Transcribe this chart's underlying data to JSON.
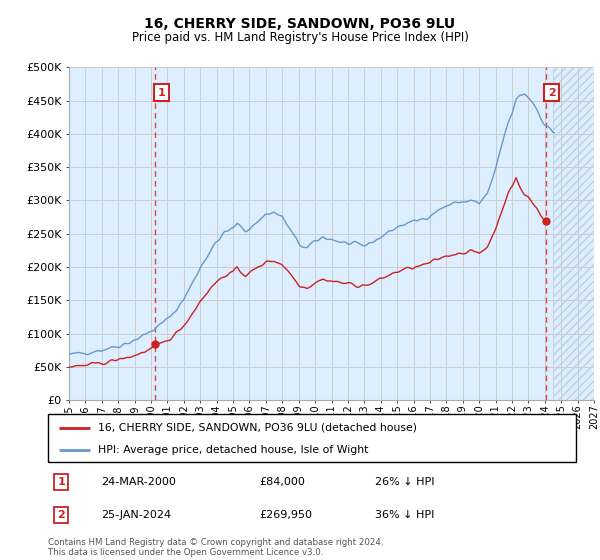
{
  "title": "16, CHERRY SIDE, SANDOWN, PO36 9LU",
  "subtitle": "Price paid vs. HM Land Registry's House Price Index (HPI)",
  "hpi_label": "HPI: Average price, detached house, Isle of Wight",
  "property_label": "16, CHERRY SIDE, SANDOWN, PO36 9LU (detached house)",
  "annotation1": {
    "num": "1",
    "date": "24-MAR-2000",
    "price": "£84,000",
    "hpi": "26% ↓ HPI",
    "year": 2000.23,
    "value": 84000
  },
  "annotation2": {
    "num": "2",
    "date": "25-JAN-2024",
    "price": "£269,950",
    "hpi": "36% ↓ HPI",
    "year": 2024.07,
    "value": 269950
  },
  "ylim": [
    0,
    500000
  ],
  "xlim_start": 1995,
  "xlim_end": 2027,
  "yticks": [
    0,
    50000,
    100000,
    150000,
    200000,
    250000,
    300000,
    350000,
    400000,
    450000,
    500000
  ],
  "ytick_labels": [
    "£0",
    "£50K",
    "£100K",
    "£150K",
    "£200K",
    "£250K",
    "£300K",
    "£350K",
    "£400K",
    "£450K",
    "£500K"
  ],
  "xticks": [
    1995,
    1996,
    1997,
    1998,
    1999,
    2000,
    2001,
    2002,
    2003,
    2004,
    2005,
    2006,
    2007,
    2008,
    2009,
    2010,
    2011,
    2012,
    2013,
    2014,
    2015,
    2016,
    2017,
    2018,
    2019,
    2020,
    2021,
    2022,
    2023,
    2024,
    2025,
    2026,
    2027
  ],
  "xtick_labels": [
    "1995",
    "1996",
    "1997",
    "1998",
    "1999",
    "2000",
    "2001",
    "2002",
    "2003",
    "2004",
    "2005",
    "2006",
    "2007",
    "2008",
    "2009",
    "2010",
    "2011",
    "2012",
    "2013",
    "2014",
    "2015",
    "2016",
    "2017",
    "2018",
    "2019",
    "2020",
    "2021",
    "2022",
    "2023",
    "2024",
    "2025",
    "2026",
    "2027"
  ],
  "hpi_color": "#6699cc",
  "property_color": "#cc2222",
  "dashed_line_color": "#dd4444",
  "grid_color": "#cccccc",
  "bg_color": "#ddeeff",
  "future_start": 2024.5,
  "footer": "Contains HM Land Registry data © Crown copyright and database right 2024.\nThis data is licensed under the Open Government Licence v3.0."
}
